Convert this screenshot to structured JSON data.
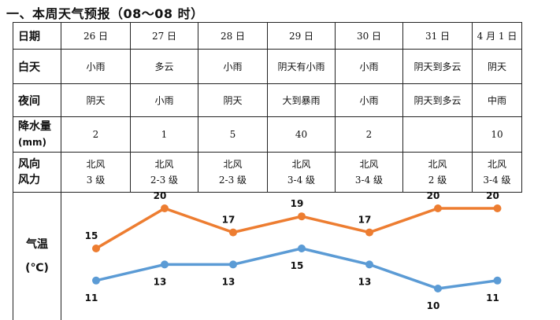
{
  "title": "一、本周天气预报（08～08 时）",
  "row_labels": {
    "date": "日期",
    "day": "白天",
    "night": "夜间",
    "precip": "降水量",
    "precip_unit": "(mm)",
    "wind_dir": "风向",
    "wind_force": "风力",
    "temp": "气温",
    "temp_unit": "(℃)"
  },
  "days": [
    {
      "date": "26 日",
      "day": "小雨",
      "night": "阴天",
      "precip": "2",
      "wind_dir": "北风",
      "wind_force": "3 级"
    },
    {
      "date": "27 日",
      "day": "多云",
      "night": "小雨",
      "precip": "1",
      "wind_dir": "北风",
      "wind_force": "2-3 级"
    },
    {
      "date": "28 日",
      "day": "小雨",
      "night": "阴天",
      "precip": "5",
      "wind_dir": "北风",
      "wind_force": "2-3 级"
    },
    {
      "date": "29 日",
      "day": "阴天有小雨",
      "night": "大到暴雨",
      "precip": "40",
      "wind_dir": "北风",
      "wind_force": "3-4 级"
    },
    {
      "date": "30 日",
      "day": "小雨",
      "night": "小雨",
      "precip": "2",
      "wind_dir": "北风",
      "wind_force": "3-4 级"
    },
    {
      "date": "31 日",
      "day": "阴天到多云",
      "night": "阴天到多云",
      "precip": "",
      "wind_dir": "北风",
      "wind_force": "2 级"
    },
    {
      "date": "4 月 1 日",
      "day": "阴天",
      "night": "中雨",
      "precip": "10",
      "wind_dir": "北风",
      "wind_force": "3-4 级"
    }
  ],
  "chart_data": {
    "type": "line",
    "categories": [
      "26 日",
      "27 日",
      "28 日",
      "29 日",
      "30 日",
      "31 日",
      "4 月 1 日"
    ],
    "series": [
      {
        "values": [
          15,
          20,
          17,
          19,
          17,
          20,
          20
        ],
        "color": "#ED7D31"
      },
      {
        "values": [
          11,
          13,
          13,
          15,
          13,
          10,
          11
        ],
        "color": "#5B9BD5"
      }
    ],
    "ylim": [
      8,
      22
    ],
    "grid": false,
    "data_labels": true
  }
}
